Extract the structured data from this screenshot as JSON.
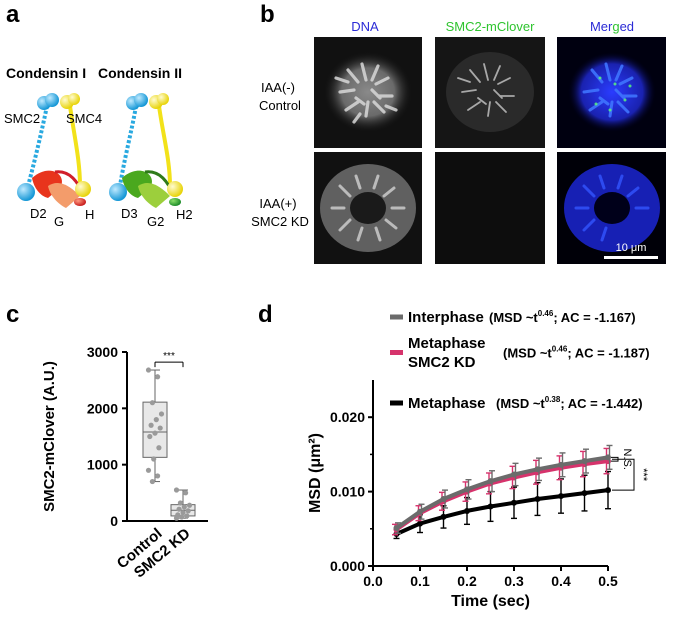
{
  "panels": {
    "a": {
      "label": "a",
      "titles": [
        "Condensin I",
        "Condensin II"
      ],
      "subunits_I": [
        "SMC2",
        "SMC4",
        "D2",
        "G",
        "H"
      ],
      "subunits_II": [
        "D3",
        "G2",
        "H2"
      ],
      "colors": {
        "smc2": "#29a9e0",
        "smc4": "#f2e21a",
        "cap_d2": "#e8341c",
        "cap_g": "#f39c6b",
        "cap_h": "#d11f2a",
        "cap_d3": "#4aa81e",
        "cap_g2": "#9ccf3c",
        "cap_h2": "#1e9a3a"
      }
    },
    "b": {
      "label": "b",
      "column_headers": [
        {
          "text": "DNA",
          "color": "#2b2bd6"
        },
        {
          "text": "SMC2-mClover",
          "color": "#2fc42f"
        }
      ],
      "merged_header": {
        "parts": [
          {
            "t": "M",
            "c": "#2b2bd6"
          },
          {
            "t": "er",
            "c": "#2b2bd6"
          },
          {
            "t": "g",
            "c": "#2fc42f"
          },
          {
            "t": "ed",
            "c": "#2b2bd6"
          }
        ]
      },
      "row_labels": [
        [
          "IAA(-)",
          "Control"
        ],
        [
          "IAA(+)",
          "SMC2 KD"
        ]
      ],
      "scale_bar": "10 μm"
    },
    "c": {
      "label": "c",
      "significance": "***"
    },
    "d": {
      "label": "d",
      "legend": [
        {
          "name": "Interphase",
          "name2": "",
          "pre": "(MSD ~t",
          "exp": "0.46",
          "post": "; AC = -1.167)",
          "color": "#6b6b6b"
        },
        {
          "name": "Metaphase",
          "name2": "SMC2 KD",
          "pre": "(MSD ~t",
          "exp": "0.46",
          "post": "; AC = -1.187)",
          "color": "#d6336c"
        },
        {
          "name": "Metaphase",
          "name2": "",
          "pre": "(MSD ~t",
          "exp": "0.38",
          "post": "; AC = -1.442)",
          "color": "#000000"
        }
      ],
      "ns": "N.S.",
      "sig": "***"
    }
  },
  "chart_data": [
    {
      "type": "box",
      "ylabel": "SMC2-mClover (A.U.)",
      "categories": [
        "Control",
        "SMC2 KD"
      ],
      "ylim": [
        0,
        3000
      ],
      "yticks": [
        "0",
        "1000",
        "2000",
        "3000"
      ],
      "boxes": [
        {
          "name": "Control",
          "min": 700,
          "q1": 1130,
          "median": 1580,
          "q3": 2110,
          "max": 2680,
          "points": [
            2680,
            2560,
            2100,
            1900,
            1800,
            1700,
            1650,
            1560,
            1500,
            1300,
            1100,
            900,
            800,
            700
          ]
        },
        {
          "name": "SMC2 KD",
          "min": 50,
          "q1": 90,
          "median": 190,
          "q3": 290,
          "max": 550,
          "points": [
            550,
            500,
            320,
            280,
            250,
            210,
            180,
            150,
            110,
            90,
            70,
            50
          ]
        }
      ],
      "significance": "***"
    },
    {
      "type": "line",
      "xlabel": "Time (sec)",
      "ylabel": "MSD (μm²)",
      "xlim": [
        0,
        0.5
      ],
      "ylim": [
        0,
        0.025
      ],
      "xticks": [
        "0.0",
        "0.1",
        "0.2",
        "0.3",
        "0.4",
        "0.5"
      ],
      "yticks": [
        "0.000",
        "0.010",
        "0.020"
      ],
      "x": [
        0.05,
        0.1,
        0.15,
        0.2,
        0.25,
        0.3,
        0.35,
        0.4,
        0.45,
        0.5
      ],
      "series": [
        {
          "name": "Interphase",
          "color": "#6b6b6b",
          "values": [
            0.0051,
            0.0073,
            0.009,
            0.0103,
            0.0114,
            0.0123,
            0.013,
            0.0136,
            0.0141,
            0.0146
          ],
          "err": [
            0.0007,
            0.001,
            0.0012,
            0.0013,
            0.0014,
            0.0015,
            0.0015,
            0.0016,
            0.0016,
            0.0016
          ]
        },
        {
          "name": "Metaphase SMC2 KD",
          "color": "#d6336c",
          "values": [
            0.0049,
            0.0071,
            0.0087,
            0.01,
            0.0111,
            0.0119,
            0.0126,
            0.0132,
            0.0137,
            0.0141
          ],
          "err": [
            0.0007,
            0.001,
            0.0012,
            0.0013,
            0.0014,
            0.0015,
            0.0016,
            0.0016,
            0.0017,
            0.0017
          ]
        },
        {
          "name": "Metaphase",
          "color": "#000000",
          "values": [
            0.0043,
            0.0057,
            0.0066,
            0.0074,
            0.008,
            0.0085,
            0.009,
            0.0094,
            0.0098,
            0.0102
          ],
          "err": [
            0.0006,
            0.0012,
            0.0015,
            0.0018,
            0.002,
            0.0021,
            0.0022,
            0.0023,
            0.0024,
            0.0025
          ]
        }
      ]
    }
  ]
}
